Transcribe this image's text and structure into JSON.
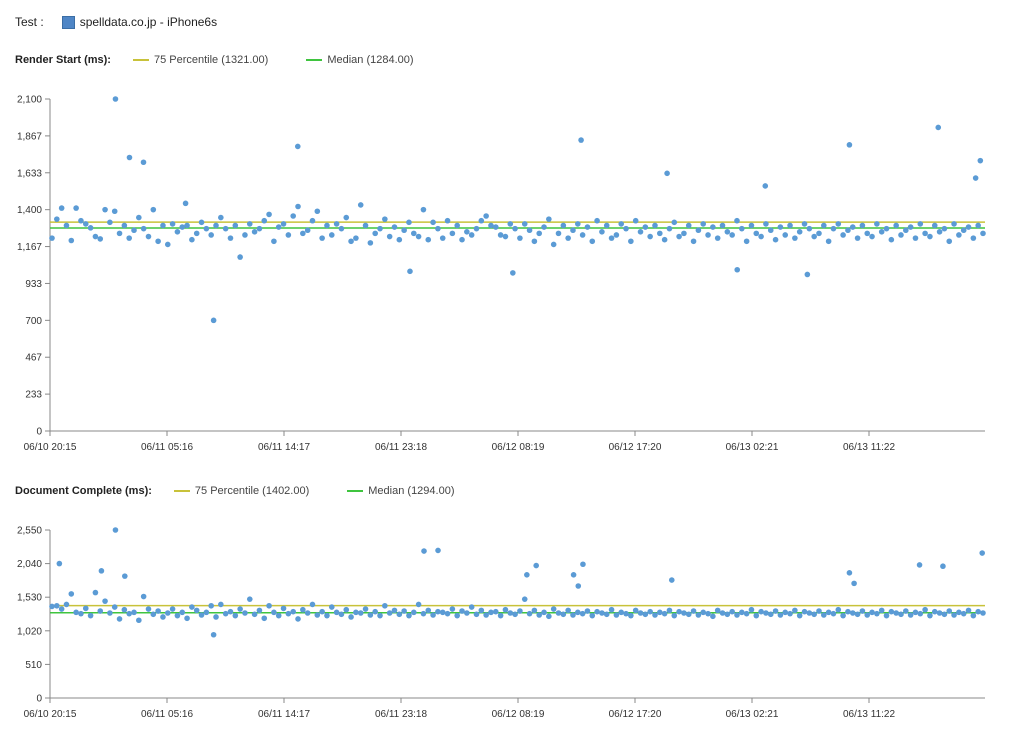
{
  "test": {
    "label": "Test :",
    "series_name": "spelldata.co.jp - iPhone6s",
    "series_color": "#5b9bd5"
  },
  "x_tick_labels": [
    "06/10 20:15",
    "06/11 05:16",
    "06/11 14:17",
    "06/11 23:18",
    "06/12 08:19",
    "06/12 17:20",
    "06/13 02:21",
    "06/13 11:22"
  ],
  "colors": {
    "point": "#5b9bd5",
    "p75": "#c8c23a",
    "median": "#3fc43f",
    "axis": "#888888"
  },
  "chart_data": [
    {
      "type": "scatter",
      "title": "Render Start (ms):",
      "series_name": "spelldata.co.jp - iPhone6s",
      "ylim": [
        0,
        2100
      ],
      "yticks": [
        "0",
        "233",
        "467",
        "700",
        "933",
        "1,167",
        "1,400",
        "1,633",
        "1,867",
        "2,100"
      ],
      "p75": {
        "label": "75 Percentile (1321.00)",
        "value": 1321
      },
      "median": {
        "label": "Median (1284.00)",
        "value": 1284
      },
      "outliers": [
        [
          0.07,
          2100
        ],
        [
          0.085,
          1730
        ],
        [
          0.1,
          1700
        ],
        [
          0.145,
          1440
        ],
        [
          0.175,
          700
        ],
        [
          0.265,
          1800
        ],
        [
          0.385,
          1010
        ],
        [
          0.495,
          1000
        ],
        [
          0.568,
          1840
        ],
        [
          0.66,
          1630
        ],
        [
          0.735,
          1020
        ],
        [
          0.765,
          1550
        ],
        [
          0.81,
          990
        ],
        [
          0.855,
          1810
        ],
        [
          0.95,
          1920
        ],
        [
          0.995,
          1710
        ],
        [
          0.99,
          1600
        ]
      ],
      "values": [
        1220,
        1340,
        1410,
        1300,
        1205,
        1410,
        1330,
        1310,
        1285,
        1230,
        1215,
        1400,
        1320,
        1390,
        1250,
        1300,
        1220,
        1270,
        1350,
        1280,
        1230,
        1400,
        1200,
        1300,
        1180,
        1310,
        1260,
        1290,
        1300,
        1210,
        1250,
        1320,
        1280,
        1240,
        1300,
        1350,
        1280,
        1220,
        1300,
        1100,
        1240,
        1310,
        1260,
        1280,
        1330,
        1370,
        1200,
        1290,
        1310,
        1240,
        1360,
        1420,
        1250,
        1270,
        1330,
        1390,
        1220,
        1300,
        1240,
        1310,
        1280,
        1350,
        1200,
        1220,
        1430,
        1300,
        1190,
        1250,
        1280,
        1340,
        1230,
        1290,
        1210,
        1270,
        1320,
        1250,
        1230,
        1400,
        1210,
        1320,
        1280,
        1220,
        1330,
        1250,
        1300,
        1210,
        1260,
        1240,
        1280,
        1330,
        1360,
        1300,
        1290,
        1240,
        1230,
        1310,
        1280,
        1220,
        1310,
        1270,
        1200,
        1250,
        1290,
        1340,
        1180,
        1250,
        1300,
        1220,
        1270,
        1310,
        1240,
        1290,
        1200,
        1330,
        1260,
        1300,
        1220,
        1240,
        1310,
        1280,
        1200,
        1330,
        1260,
        1290,
        1230,
        1300,
        1250,
        1210,
        1280,
        1320,
        1230,
        1250,
        1300,
        1200,
        1270,
        1310,
        1240,
        1290,
        1220,
        1300,
        1260,
        1240,
        1330,
        1280,
        1200,
        1300,
        1250,
        1230,
        1310,
        1270,
        1210,
        1290,
        1240,
        1300,
        1220,
        1260,
        1310,
        1280,
        1230,
        1250,
        1300,
        1200,
        1280,
        1310,
        1240,
        1270,
        1290,
        1220,
        1300,
        1250,
        1230,
        1310,
        1260,
        1280,
        1210,
        1300,
        1240,
        1270,
        1290,
        1220,
        1310,
        1250,
        1230,
        1300,
        1260,
        1280,
        1200,
        1310,
        1240,
        1270,
        1290,
        1220,
        1300,
        1250
      ]
    },
    {
      "type": "scatter",
      "title": "Document Complete (ms):",
      "series_name": "spelldata.co.jp - iPhone6s",
      "ylim": [
        0,
        2550
      ],
      "yticks": [
        "0",
        "510",
        "1,020",
        "1,530",
        "2,040",
        "2,550"
      ],
      "p75": {
        "label": "75 Percentile (1402.00)",
        "value": 1402
      },
      "median": {
        "label": "Median (1294.00)",
        "value": 1294
      },
      "outliers": [
        [
          0.01,
          2040
        ],
        [
          0.055,
          1930
        ],
        [
          0.07,
          2550
        ],
        [
          0.08,
          1850
        ],
        [
          0.175,
          960
        ],
        [
          0.4,
          2230
        ],
        [
          0.415,
          2240
        ],
        [
          0.51,
          1870
        ],
        [
          0.52,
          2010
        ],
        [
          0.56,
          1870
        ],
        [
          0.565,
          1700
        ],
        [
          0.57,
          2030
        ],
        [
          0.665,
          1790
        ],
        [
          0.855,
          1900
        ],
        [
          0.86,
          1740
        ],
        [
          0.93,
          2020
        ],
        [
          0.955,
          2000
        ],
        [
          0.997,
          2200
        ]
      ],
      "values": [
        1390,
        1400,
        1350,
        1420,
        1580,
        1300,
        1280,
        1360,
        1250,
        1600,
        1320,
        1470,
        1290,
        1380,
        1200,
        1340,
        1280,
        1300,
        1180,
        1540,
        1350,
        1270,
        1320,
        1230,
        1290,
        1350,
        1250,
        1300,
        1210,
        1380,
        1330,
        1260,
        1300,
        1400,
        1230,
        1420,
        1280,
        1310,
        1250,
        1350,
        1290,
        1500,
        1270,
        1330,
        1210,
        1400,
        1300,
        1250,
        1360,
        1280,
        1310,
        1200,
        1340,
        1290,
        1420,
        1260,
        1310,
        1250,
        1380,
        1300,
        1270,
        1340,
        1230,
        1300,
        1290,
        1350,
        1260,
        1310,
        1250,
        1400,
        1290,
        1330,
        1270,
        1320,
        1250,
        1300,
        1420,
        1280,
        1330,
        1260,
        1310,
        1300,
        1280,
        1350,
        1250,
        1320,
        1290,
        1380,
        1270,
        1330,
        1260,
        1300,
        1310,
        1250,
        1340,
        1290,
        1270,
        1320,
        1500,
        1280,
        1330,
        1260,
        1300,
        1240,
        1350,
        1290,
        1270,
        1330,
        1260,
        1300,
        1280,
        1320,
        1250,
        1310,
        1290,
        1270,
        1340,
        1260,
        1300,
        1280,
        1250,
        1330,
        1290,
        1270,
        1310,
        1260,
        1300,
        1280,
        1330,
        1250,
        1310,
        1290,
        1270,
        1320,
        1260,
        1300,
        1280,
        1240,
        1330,
        1290,
        1270,
        1310,
        1260,
        1300,
        1280,
        1340,
        1250,
        1310,
        1290,
        1270,
        1320,
        1260,
        1300,
        1280,
        1330,
        1250,
        1310,
        1290,
        1270,
        1320,
        1260,
        1300,
        1280,
        1340,
        1250,
        1310,
        1290,
        1270,
        1320,
        1260,
        1300,
        1280,
        1330,
        1250,
        1310,
        1290,
        1270,
        1320,
        1260,
        1300,
        1280,
        1340,
        1250,
        1310,
        1290,
        1270,
        1320,
        1260,
        1300,
        1280,
        1330,
        1250,
        1310,
        1290
      ]
    }
  ]
}
